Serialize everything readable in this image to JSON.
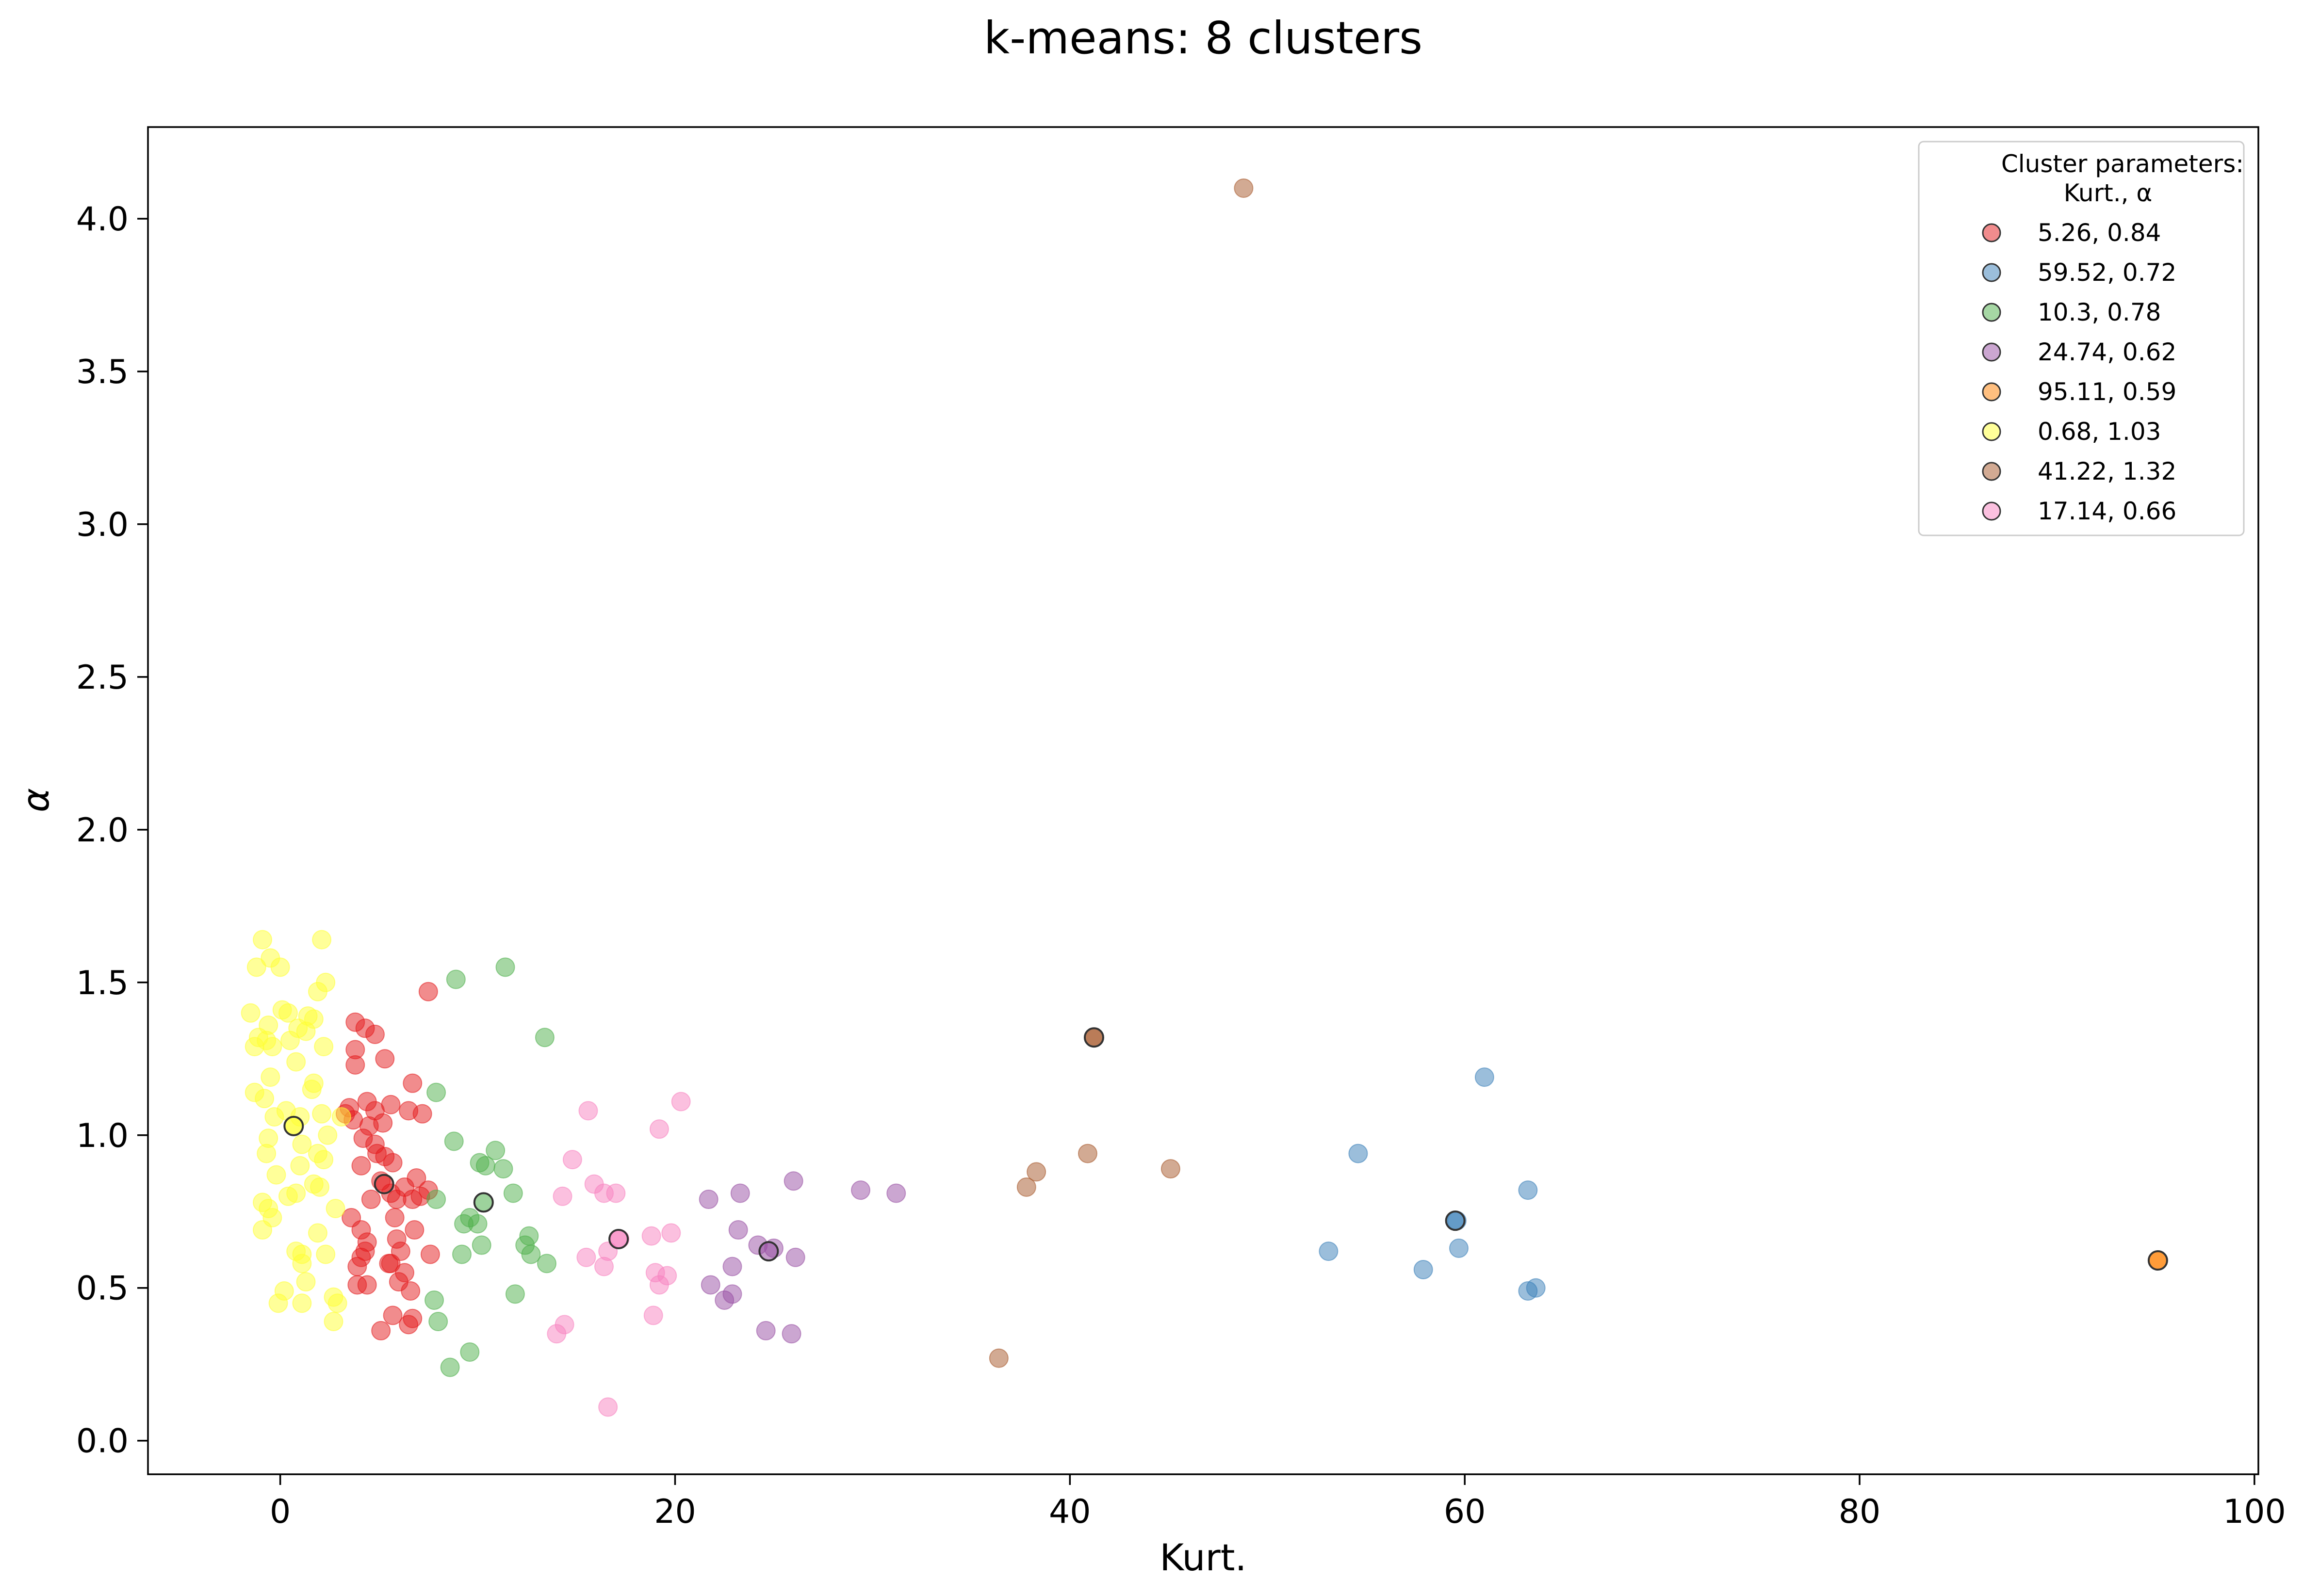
{
  "chart_data": {
    "type": "scatter",
    "title": "k-means: 8 clusters",
    "xlabel": "Kurt.",
    "ylabel": "α",
    "xlim": [
      -6.7,
      100.2
    ],
    "ylim": [
      -0.11,
      4.3
    ],
    "xticks": [
      0,
      20,
      40,
      60,
      80,
      100
    ],
    "yticks": [
      0.0,
      0.5,
      1.0,
      1.5,
      2.0,
      2.5,
      3.0,
      3.5,
      4.0
    ],
    "grid": false,
    "legend": {
      "placement": "top-right",
      "title_line1": "Cluster parameters:",
      "title_line2": "Kurt.,   α"
    },
    "series": [
      {
        "name": "5.26, 0.84",
        "color": "#e41a1c",
        "centroid": [
          5.26,
          0.84
        ],
        "points": [
          [
            3.5,
            1.09
          ],
          [
            3.3,
            1.07
          ],
          [
            3.7,
            1.05
          ],
          [
            4.4,
            1.11
          ],
          [
            4.8,
            1.08
          ],
          [
            5.2,
            1.04
          ],
          [
            5.6,
            1.1
          ],
          [
            6.5,
            1.08
          ],
          [
            7.2,
            1.07
          ],
          [
            3.8,
            1.37
          ],
          [
            4.3,
            1.35
          ],
          [
            4.8,
            1.33
          ],
          [
            3.8,
            1.28
          ],
          [
            3.8,
            1.23
          ],
          [
            5.3,
            1.25
          ],
          [
            6.7,
            1.17
          ],
          [
            7.5,
            1.47
          ],
          [
            4.5,
            1.03
          ],
          [
            4.2,
            0.99
          ],
          [
            4.8,
            0.97
          ],
          [
            4.9,
            0.94
          ],
          [
            5.3,
            0.93
          ],
          [
            5.7,
            0.91
          ],
          [
            4.1,
            0.9
          ],
          [
            5.1,
            0.85
          ],
          [
            6.3,
            0.83
          ],
          [
            6.9,
            0.86
          ],
          [
            7.5,
            0.82
          ],
          [
            7.1,
            0.8
          ],
          [
            5.6,
            0.81
          ],
          [
            5.9,
            0.79
          ],
          [
            6.7,
            0.79
          ],
          [
            4.6,
            0.79
          ],
          [
            3.6,
            0.73
          ],
          [
            4.1,
            0.69
          ],
          [
            5.8,
            0.73
          ],
          [
            6.8,
            0.69
          ],
          [
            4.4,
            0.65
          ],
          [
            4.3,
            0.62
          ],
          [
            4.1,
            0.6
          ],
          [
            3.9,
            0.57
          ],
          [
            5.5,
            0.58
          ],
          [
            5.9,
            0.66
          ],
          [
            6.1,
            0.62
          ],
          [
            6.3,
            0.55
          ],
          [
            5.6,
            0.58
          ],
          [
            7.6,
            0.61
          ],
          [
            3.9,
            0.51
          ],
          [
            4.4,
            0.51
          ],
          [
            6.0,
            0.52
          ],
          [
            6.6,
            0.49
          ],
          [
            5.7,
            0.41
          ],
          [
            6.5,
            0.38
          ],
          [
            6.7,
            0.4
          ],
          [
            5.1,
            0.36
          ]
        ]
      },
      {
        "name": "59.52, 0.72",
        "color": "#377eb8",
        "centroid": [
          59.52,
          0.72
        ],
        "points": [
          [
            61.0,
            1.19
          ],
          [
            54.6,
            0.94
          ],
          [
            63.2,
            0.82
          ],
          [
            59.6,
            0.72
          ],
          [
            53.1,
            0.62
          ],
          [
            59.7,
            0.63
          ],
          [
            57.9,
            0.56
          ],
          [
            63.2,
            0.49
          ],
          [
            63.6,
            0.5
          ]
        ]
      },
      {
        "name": "10.3, 0.78",
        "color": "#4daf4a",
        "centroid": [
          10.3,
          0.78
        ],
        "points": [
          [
            11.4,
            1.55
          ],
          [
            8.9,
            1.51
          ],
          [
            13.4,
            1.32
          ],
          [
            7.9,
            1.14
          ],
          [
            8.8,
            0.98
          ],
          [
            10.9,
            0.95
          ],
          [
            10.1,
            0.91
          ],
          [
            10.4,
            0.9
          ],
          [
            11.3,
            0.89
          ],
          [
            11.8,
            0.81
          ],
          [
            7.9,
            0.79
          ],
          [
            9.6,
            0.73
          ],
          [
            9.3,
            0.71
          ],
          [
            10.0,
            0.71
          ],
          [
            12.6,
            0.67
          ],
          [
            12.4,
            0.64
          ],
          [
            10.2,
            0.64
          ],
          [
            12.7,
            0.61
          ],
          [
            9.2,
            0.61
          ],
          [
            13.5,
            0.58
          ],
          [
            11.9,
            0.48
          ],
          [
            7.8,
            0.46
          ],
          [
            8.0,
            0.39
          ],
          [
            9.6,
            0.29
          ],
          [
            8.6,
            0.24
          ]
        ]
      },
      {
        "name": "24.74, 0.62",
        "color": "#984ea3",
        "centroid": [
          24.74,
          0.62
        ],
        "points": [
          [
            26.0,
            0.85
          ],
          [
            29.4,
            0.82
          ],
          [
            31.2,
            0.81
          ],
          [
            23.3,
            0.81
          ],
          [
            21.7,
            0.79
          ],
          [
            23.2,
            0.69
          ],
          [
            24.2,
            0.64
          ],
          [
            25.0,
            0.63
          ],
          [
            26.1,
            0.6
          ],
          [
            22.9,
            0.57
          ],
          [
            21.8,
            0.51
          ],
          [
            22.5,
            0.46
          ],
          [
            22.9,
            0.48
          ],
          [
            24.6,
            0.36
          ],
          [
            25.9,
            0.35
          ]
        ]
      },
      {
        "name": "95.11, 0.59",
        "color": "#ff7f00",
        "centroid": [
          95.11,
          0.59
        ],
        "points": [
          [
            95.11,
            0.59
          ]
        ]
      },
      {
        "name": "0.68, 1.03",
        "color": "#ffff33",
        "centroid": [
          0.68,
          1.03
        ],
        "points": [
          [
            -0.9,
            1.64
          ],
          [
            2.1,
            1.64
          ],
          [
            -1.2,
            1.55
          ],
          [
            -0.5,
            1.58
          ],
          [
            0.0,
            1.55
          ],
          [
            2.3,
            1.5
          ],
          [
            1.9,
            1.47
          ],
          [
            -1.5,
            1.4
          ],
          [
            0.1,
            1.41
          ],
          [
            0.4,
            1.4
          ],
          [
            1.4,
            1.39
          ],
          [
            1.7,
            1.38
          ],
          [
            -0.6,
            1.36
          ],
          [
            0.9,
            1.35
          ],
          [
            1.3,
            1.34
          ],
          [
            -1.1,
            1.32
          ],
          [
            -0.7,
            1.31
          ],
          [
            0.5,
            1.31
          ],
          [
            -1.3,
            1.29
          ],
          [
            -0.4,
            1.29
          ],
          [
            2.2,
            1.29
          ],
          [
            0.8,
            1.24
          ],
          [
            1.7,
            1.17
          ],
          [
            1.6,
            1.15
          ],
          [
            -1.3,
            1.14
          ],
          [
            -0.8,
            1.12
          ],
          [
            -0.5,
            1.19
          ],
          [
            0.3,
            1.08
          ],
          [
            1.0,
            1.06
          ],
          [
            2.1,
            1.07
          ],
          [
            3.1,
            1.06
          ],
          [
            -0.3,
            1.06
          ],
          [
            0.7,
            1.03
          ],
          [
            -0.6,
            0.99
          ],
          [
            2.4,
            1.0
          ],
          [
            1.1,
            0.97
          ],
          [
            1.9,
            0.94
          ],
          [
            -0.7,
            0.94
          ],
          [
            2.2,
            0.92
          ],
          [
            1.0,
            0.9
          ],
          [
            -0.2,
            0.87
          ],
          [
            1.7,
            0.84
          ],
          [
            2.0,
            0.83
          ],
          [
            0.4,
            0.8
          ],
          [
            0.8,
            0.81
          ],
          [
            -0.9,
            0.78
          ],
          [
            -0.6,
            0.76
          ],
          [
            -0.4,
            0.73
          ],
          [
            2.8,
            0.76
          ],
          [
            -0.9,
            0.69
          ],
          [
            1.9,
            0.68
          ],
          [
            0.8,
            0.62
          ],
          [
            1.1,
            0.61
          ],
          [
            2.3,
            0.61
          ],
          [
            1.1,
            0.58
          ],
          [
            1.3,
            0.52
          ],
          [
            0.2,
            0.49
          ],
          [
            1.1,
            0.45
          ],
          [
            2.7,
            0.47
          ],
          [
            2.9,
            0.45
          ],
          [
            -0.1,
            0.45
          ],
          [
            2.7,
            0.39
          ]
        ]
      },
      {
        "name": "41.22, 1.32",
        "color": "#a65628",
        "centroid": [
          41.22,
          1.32
        ],
        "points": [
          [
            48.8,
            4.1
          ],
          [
            41.2,
            1.32
          ],
          [
            40.9,
            0.94
          ],
          [
            45.1,
            0.89
          ],
          [
            38.3,
            0.88
          ],
          [
            37.8,
            0.83
          ],
          [
            36.4,
            0.27
          ]
        ]
      },
      {
        "name": "17.14, 0.66",
        "color": "#f781bf",
        "centroid": [
          17.14,
          0.66
        ],
        "points": [
          [
            20.3,
            1.11
          ],
          [
            15.6,
            1.08
          ],
          [
            19.2,
            1.02
          ],
          [
            14.8,
            0.92
          ],
          [
            15.9,
            0.84
          ],
          [
            16.4,
            0.81
          ],
          [
            17.0,
            0.81
          ],
          [
            14.3,
            0.8
          ],
          [
            18.8,
            0.67
          ],
          [
            19.8,
            0.68
          ],
          [
            17.2,
            0.66
          ],
          [
            16.6,
            0.62
          ],
          [
            15.5,
            0.6
          ],
          [
            16.4,
            0.57
          ],
          [
            19.0,
            0.55
          ],
          [
            19.6,
            0.54
          ],
          [
            19.2,
            0.51
          ],
          [
            18.9,
            0.41
          ],
          [
            14.4,
            0.38
          ],
          [
            14.0,
            0.35
          ],
          [
            16.6,
            0.11
          ]
        ]
      }
    ]
  }
}
